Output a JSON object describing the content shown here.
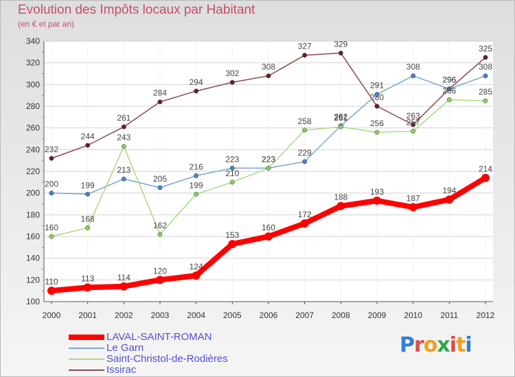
{
  "title": "Evolution des Impôts locaux par Habitant",
  "subtitle": "(en € et par an)",
  "logo": {
    "text": "Proxiti",
    "colors": [
      "#2f7fd8",
      "#e04a4a",
      "#f0a020",
      "#2aa84a",
      "#e04a4a",
      "#f0a020",
      "#2f7fd8"
    ]
  },
  "chart_data": {
    "type": "line",
    "x": [
      "2000",
      "2001",
      "2002",
      "2003",
      "2004",
      "2005",
      "2006",
      "2007",
      "2008",
      "2009",
      "2010",
      "2011",
      "2012"
    ],
    "ylim": [
      100,
      340
    ],
    "yticks": [
      100,
      120,
      140,
      160,
      180,
      200,
      220,
      240,
      260,
      280,
      300,
      320,
      340
    ],
    "grid": true,
    "legend_position": "bottom-left",
    "series": [
      {
        "name": "LAVAL-SAINT-ROMAN",
        "color": "#ff0000",
        "marker": "#ff0000",
        "width": 8,
        "values": [
          110,
          113,
          114,
          120,
          124,
          153,
          160,
          172,
          188,
          193,
          187,
          194,
          214
        ]
      },
      {
        "name": "Le Garn",
        "color": "#7aa6cf",
        "marker": "#4a86c6",
        "width": 1.5,
        "values": [
          200,
          199,
          213,
          205,
          216,
          223,
          223,
          229,
          262,
          291,
          308,
          296,
          308
        ]
      },
      {
        "name": "Saint-Christol-de-Rodières",
        "color": "#a5dc83",
        "marker": "#88d060",
        "width": 1.5,
        "values": [
          160,
          168,
          243,
          162,
          199,
          210,
          223,
          258,
          261,
          256,
          257,
          286,
          285
        ]
      },
      {
        "name": "Issirac",
        "color": "#8a4a4a",
        "marker": "#6a1f2a",
        "width": 1.5,
        "values": [
          232,
          244,
          261,
          284,
          294,
          302,
          308,
          327,
          329,
          280,
          263,
          296,
          325
        ]
      }
    ]
  }
}
